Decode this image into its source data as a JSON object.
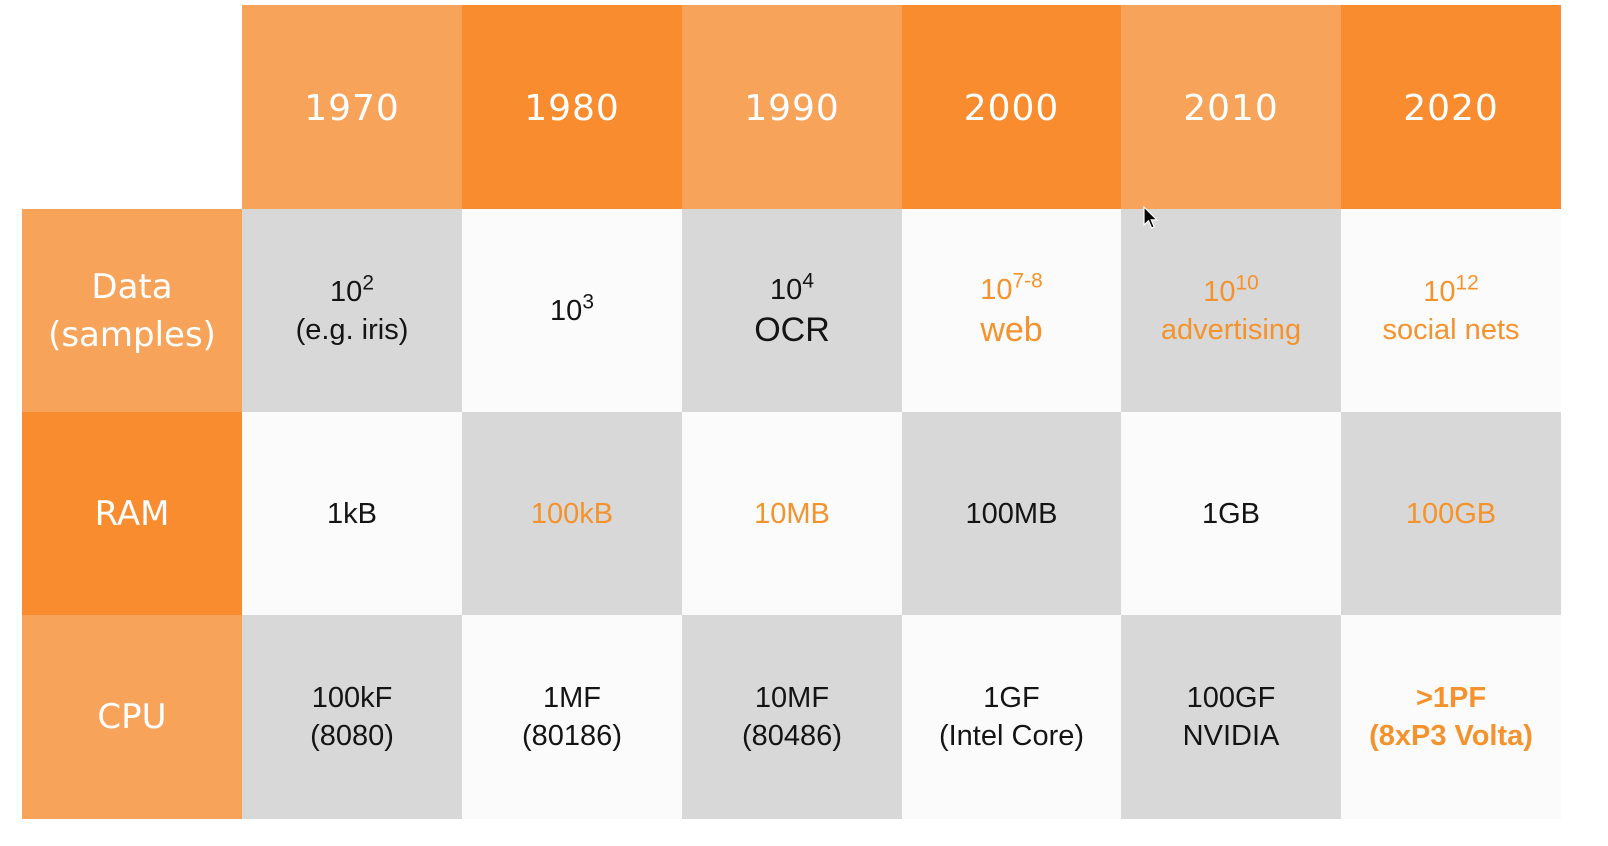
{
  "header": {
    "years": [
      "1970",
      "1980",
      "1990",
      "2000",
      "2010",
      "2020"
    ]
  },
  "rows": {
    "data": {
      "label_line1": "Data",
      "label_line2": "(samples)",
      "cells": [
        {
          "base": "10",
          "exp": "2",
          "note": "(e.g. iris)"
        },
        {
          "base": "10",
          "exp": "3",
          "note": ""
        },
        {
          "base": "10",
          "exp": "4",
          "note": "OCR"
        },
        {
          "base": "10",
          "exp": "7-8",
          "note": "web"
        },
        {
          "base": "10",
          "exp": "10",
          "note": "advertising"
        },
        {
          "base": "10",
          "exp": "12",
          "note": "social nets"
        }
      ]
    },
    "ram": {
      "label": "RAM",
      "cells": [
        "1kB",
        "100kB",
        "10MB",
        "100MB",
        "1GB",
        "100GB"
      ]
    },
    "cpu": {
      "label": "CPU",
      "cells": [
        {
          "line1": "100kF",
          "line2": "(8080)"
        },
        {
          "line1": "1MF",
          "line2": "(80186)"
        },
        {
          "line1": "10MF",
          "line2": "(80486)"
        },
        {
          "line1": "1GF",
          "line2": "(Intel Core)"
        },
        {
          "line1": "100GF",
          "line2": "NVIDIA"
        },
        {
          "line1": ">1PF",
          "line2": "(8xP3 Volta)"
        }
      ]
    }
  },
  "colors": {
    "header_light": "#f8a35a",
    "header_dark": "#f98c2f",
    "highlight_text": "#f4932d",
    "cell_gray": "#d8d8d8",
    "cell_white": "#fbfbfb"
  }
}
